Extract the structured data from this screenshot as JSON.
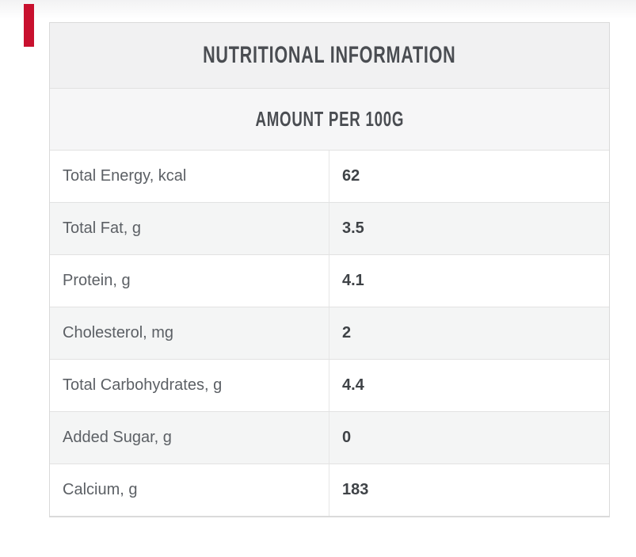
{
  "theme": {
    "accent": "#c8102e",
    "fade_top": "#f2f2f3",
    "table_border": "#dadada",
    "row_divider": "#e2e2e2",
    "col_divider": "#e6e6e6",
    "header_bg": "#f1f1f2",
    "subheader_bg": "#f6f6f7",
    "row_alt_bg": "#f4f5f5",
    "heading_color": "#4a4d52",
    "label_color": "#5c6065",
    "value_color": "#3f4347"
  },
  "table": {
    "title": "NUTRITIONAL INFORMATION",
    "subtitle": "AMOUNT PER 100G",
    "rows": [
      {
        "label": "Total Energy, kcal",
        "value": "62"
      },
      {
        "label": "Total Fat, g",
        "value": "3.5"
      },
      {
        "label": "Protein, g",
        "value": "4.1"
      },
      {
        "label": "Cholesterol, mg",
        "value": "2"
      },
      {
        "label": "Total Carbohydrates, g",
        "value": "4.4"
      },
      {
        "label": "Added Sugar, g",
        "value": "0"
      },
      {
        "label": "Calcium, g",
        "value": "183"
      }
    ]
  }
}
